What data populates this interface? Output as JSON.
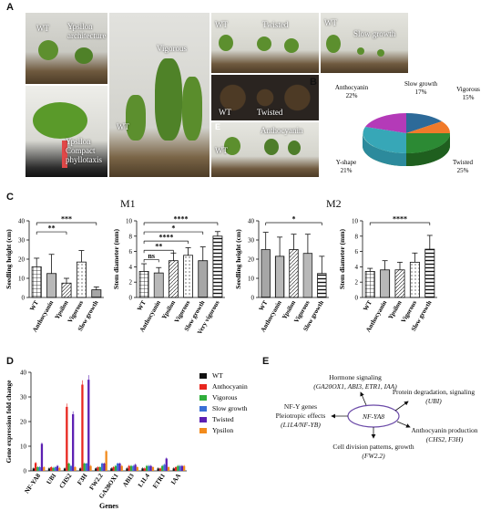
{
  "panel_letters": {
    "A": "A",
    "B": "B",
    "C": "C",
    "D": "D",
    "E": "E",
    "E2": "E"
  },
  "photos": {
    "p1_wt": "WT",
    "p1_ypsilon": "Ypsilon",
    "p1_arch": "architecture",
    "p2_line1": "Ypsilon",
    "p2_line2": "Compact",
    "p2_line3": "phyllotaxis",
    "p3_wt": "WT",
    "p3_vig": "Vigorous",
    "p4_wt": "WT",
    "p4_tw": "Twisted",
    "p5_wt": "WT",
    "p5_tw": "Twisted",
    "p6_wt": "WT",
    "p6_sg": "Slow growth",
    "p7_wt": "WT",
    "p7_anth": "Anthocyanin"
  },
  "pie": {
    "labels": [
      {
        "line1": "Anthocyanin",
        "line2": "22%"
      },
      {
        "line1": "Slow growth",
        "line2": "17%"
      },
      {
        "line1": "Vigorous",
        "line2": "15%"
      },
      {
        "line1": "Twisted",
        "line2": "25%"
      },
      {
        "line1": "Y-shape",
        "line2": "21%"
      }
    ]
  },
  "subtitles": {
    "m1": "M1",
    "m2": "M2"
  },
  "chart_data": [
    {
      "type": "bar",
      "panel": "C-1",
      "ylabel": "Seedling height (cm)",
      "ylim": [
        0,
        40
      ],
      "yticks": [
        0,
        10,
        20,
        30,
        40
      ],
      "categories": [
        "WT",
        "Anthocyanin",
        "Ypsilon",
        "Vigorous",
        "Slow growth"
      ],
      "values": [
        16,
        12.5,
        7.5,
        18.5,
        4
      ],
      "errors": [
        4.5,
        10,
        2.5,
        6,
        1.5
      ],
      "sig": [
        {
          "from": 0,
          "to": 2,
          "label": "**"
        },
        {
          "from": 0,
          "to": 4,
          "label": "***"
        }
      ]
    },
    {
      "type": "bar",
      "panel": "C-2",
      "ylabel": "Stem diameter (mm)",
      "ylim": [
        0,
        10
      ],
      "yticks": [
        0,
        2,
        4,
        6,
        8,
        10
      ],
      "categories": [
        "WT",
        "Anthocyanin",
        "Ypsilon",
        "Vigorous",
        "Slow growth",
        "Very vigorous"
      ],
      "values": [
        3.4,
        3.2,
        4.8,
        5.5,
        4.8,
        8.0
      ],
      "errors": [
        1.0,
        0.7,
        1.0,
        1.0,
        1.8,
        0.6
      ],
      "sig": [
        {
          "from": 0,
          "to": 1,
          "label": "ns"
        },
        {
          "from": 0,
          "to": 2,
          "label": "**"
        },
        {
          "from": 0,
          "to": 3,
          "label": "****"
        },
        {
          "from": 0,
          "to": 4,
          "label": "*"
        },
        {
          "from": 0,
          "to": 5,
          "label": "****"
        }
      ]
    },
    {
      "type": "bar",
      "panel": "C-3",
      "ylabel": "Seedling height (cm)",
      "ylim": [
        0,
        40
      ],
      "yticks": [
        0,
        10,
        20,
        30,
        40
      ],
      "categories": [
        "WT",
        "Anthocyanin",
        "Ypsilon",
        "Vigorous",
        "Slow growth"
      ],
      "values": [
        25,
        21.5,
        25,
        23,
        12.5
      ],
      "errors": [
        9,
        10,
        8,
        10,
        9
      ],
      "sig": [
        {
          "from": 0,
          "to": 4,
          "label": "*"
        }
      ]
    },
    {
      "type": "bar",
      "panel": "C-4",
      "ylabel": "Stem diameter (mm)",
      "ylim": [
        0,
        10
      ],
      "yticks": [
        0,
        2,
        4,
        6,
        8,
        10
      ],
      "categories": [
        "WT",
        "Anthocyanin",
        "Ypsilon",
        "Vigorous",
        "Slow growth"
      ],
      "values": [
        3.4,
        3.6,
        3.6,
        4.6,
        6.3
      ],
      "errors": [
        0.4,
        1.2,
        1.0,
        1.2,
        1.8
      ],
      "sig": [
        {
          "from": 0,
          "to": 4,
          "label": "****"
        }
      ]
    },
    {
      "type": "bar",
      "panel": "D",
      "ylabel": "Gene expression fold change",
      "xlabel": "Genes",
      "ylim": [
        0,
        40
      ],
      "yticks": [
        0,
        10,
        20,
        30,
        40
      ],
      "categories": [
        "NF-YA8",
        "UBI",
        "CHS2",
        "F3H",
        "FW2.2",
        "GA20OX1",
        "ABI3",
        "L1L4",
        "ETR1",
        "IAA"
      ],
      "series": [
        {
          "name": "WT",
          "color": "#111111",
          "values": [
            1,
            1,
            1,
            1,
            1,
            1,
            1,
            1,
            1,
            1
          ]
        },
        {
          "name": "Anthocyanin",
          "color": "#e8261e",
          "values": [
            3.2,
            1.5,
            26,
            35,
            1.5,
            1.5,
            2,
            1,
            1,
            1.5
          ]
        },
        {
          "name": "Vigorous",
          "color": "#2fae3b",
          "values": [
            1.5,
            1.2,
            3,
            3,
            1.5,
            2,
            2,
            2,
            2,
            2
          ]
        },
        {
          "name": "Slow growth",
          "color": "#3a6fd6",
          "values": [
            1.5,
            1.5,
            2,
            3,
            3,
            3,
            2,
            2,
            2.5,
            2
          ]
        },
        {
          "name": "Twisted",
          "color": "#5b1fb2",
          "values": [
            11,
            2,
            23,
            37,
            3,
            3,
            2.5,
            2,
            5,
            2
          ]
        },
        {
          "name": "Ypsilon",
          "color": "#f28b1c",
          "values": [
            1.5,
            1.2,
            1.5,
            2,
            8,
            2,
            1.5,
            1.5,
            1.5,
            2
          ]
        }
      ]
    }
  ],
  "interaction": {
    "center": "NF-YA8",
    "top_title": "Hormone signaling",
    "top_genes": "(GA20OX1, ABI3, ETR1, IAA)",
    "right_title": "Protein degradation, signaling",
    "right_genes": "(UBI)",
    "left_l1": "NF-Y genes",
    "left_l2": "Pleiotropic effects",
    "left_l3": "(L1L4/NF-YB)",
    "rb_title": "Anthocyanin production",
    "rb_genes": "(CHS2, F3H)",
    "bottom_title": "Cell division patterns, growth",
    "bottom_genes": "(FW2.2)"
  }
}
